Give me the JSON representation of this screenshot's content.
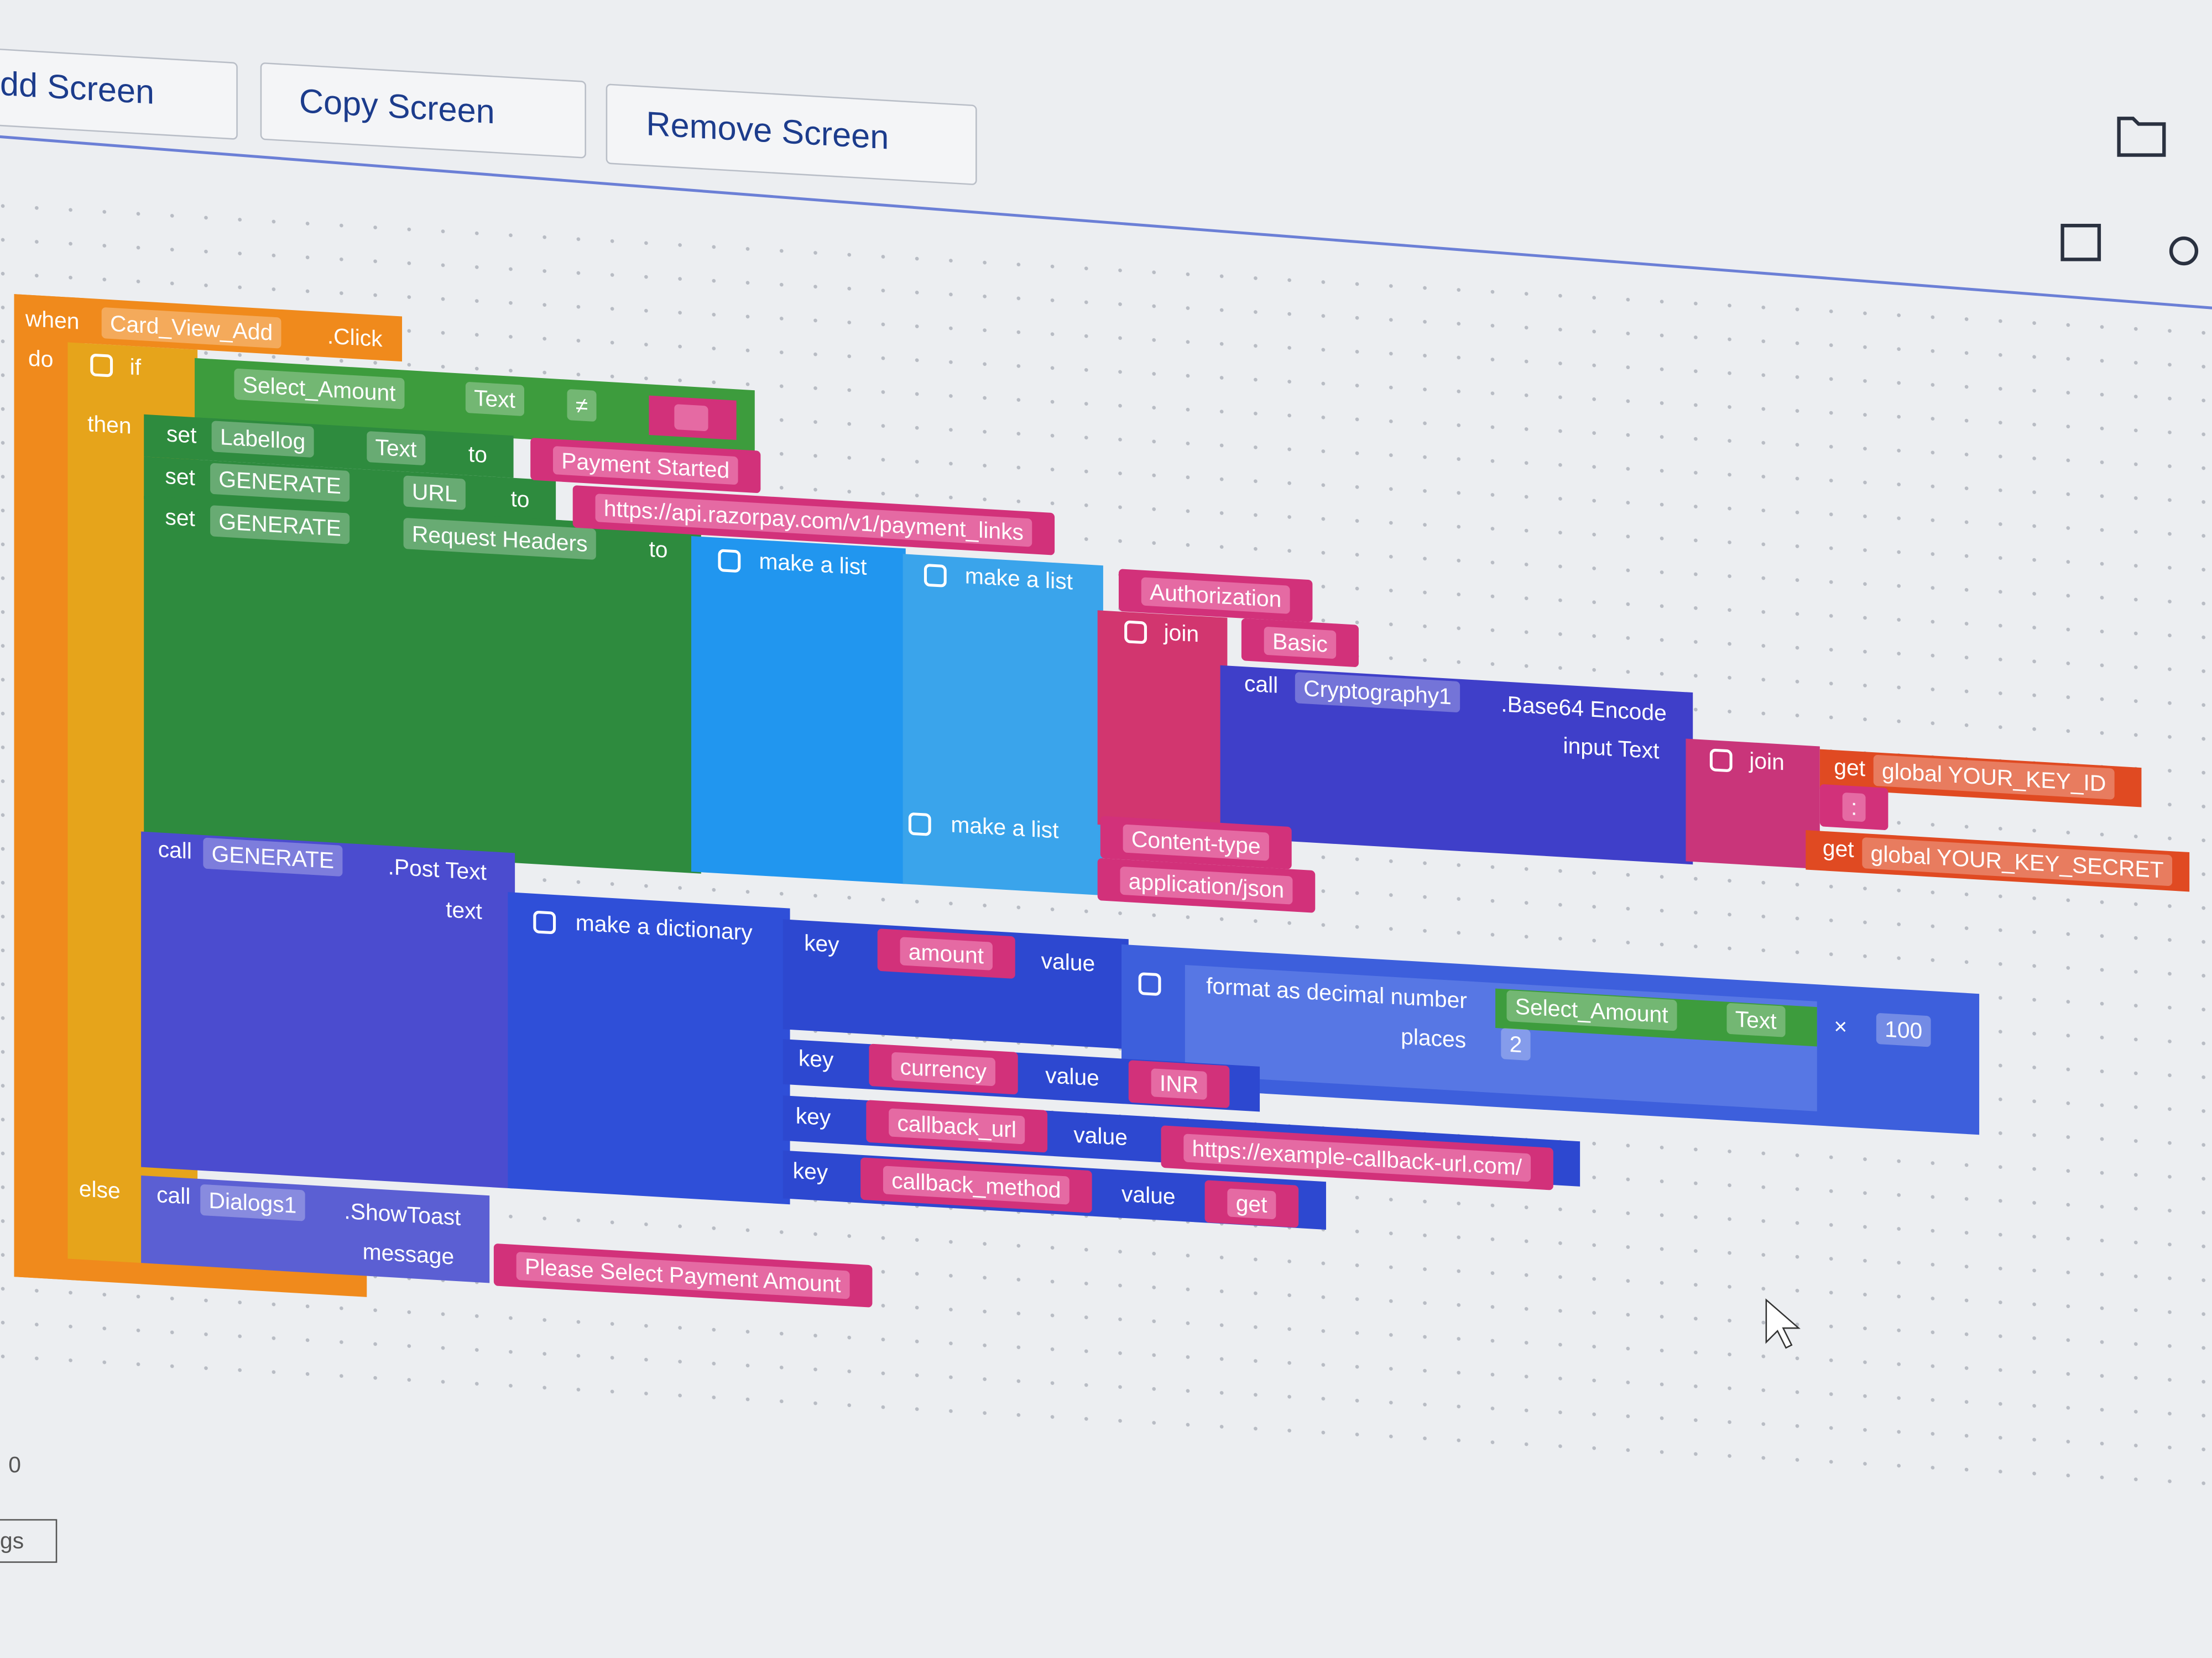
{
  "toolbar": {
    "add_screen": "dd Screen",
    "copy_screen": "Copy Screen",
    "remove_screen": "Remove Screen"
  },
  "event_block": {
    "when": "when",
    "component": "Card_View_Add",
    "event": ".Click",
    "do": "do"
  },
  "if_block": {
    "if": "if",
    "then": "then",
    "else": "else"
  },
  "condition": {
    "component": "Select_Amount",
    "property": "Text",
    "operator": "≠"
  },
  "set_label": {
    "set": "set",
    "component": "Labellog",
    "property": "Text",
    "to": "to",
    "value": "Payment Started"
  },
  "set_url": {
    "set": "set",
    "component": "GENERATE",
    "property": "URL",
    "to": "to",
    "value": "https://api.razorpay.com/v1/payment_links"
  },
  "set_headers": {
    "set": "set",
    "component": "GENERATE",
    "property": "Request Headers",
    "to": "to"
  },
  "headers_list": {
    "label": "make a list"
  },
  "auth_pair": {
    "label": "make a list",
    "key": "Authorization"
  },
  "auth_join": {
    "label": "join",
    "prefix": "Basic"
  },
  "encode": {
    "call": "call",
    "component": "Cryptography1",
    "method": ".Base64 Encode",
    "input": "input Text"
  },
  "creds_join": {
    "label": "join",
    "separator": ":"
  },
  "key_id": {
    "get": "get",
    "variable": "global YOUR_KEY_ID"
  },
  "key_secret": {
    "get": "get",
    "variable": "global YOUR_KEY_SECRET"
  },
  "content_pair": {
    "label": "make a list",
    "key": "Content-type",
    "value": "application/json"
  },
  "post": {
    "call": "call",
    "component": "GENERATE",
    "method": ".Post Text",
    "text": "text"
  },
  "dictionary": {
    "label": "make a dictionary",
    "pairs": [
      {
        "key_label": "key",
        "key": "amount",
        "value_label": "value"
      },
      {
        "key_label": "key",
        "key": "currency",
        "value_label": "value",
        "value": "INR"
      },
      {
        "key_label": "key",
        "key": "callback_url",
        "value_label": "value",
        "value": "https://example-callback-url.com/"
      },
      {
        "key_label": "key",
        "key": "callback_method",
        "value_label": "value",
        "value": "get"
      }
    ]
  },
  "format_decimal": {
    "label": "format as decimal number",
    "component": "Select_Amount",
    "property": "Text",
    "operator": "×",
    "multiplier": 100,
    "places_label": "places",
    "places": 2
  },
  "toast": {
    "call": "call",
    "component": "Dialogs1",
    "method": ".ShowToast",
    "message_label": "message",
    "message": "Please Select Payment Amount"
  },
  "sidebar": {
    "counter": "0",
    "label": "gs"
  }
}
